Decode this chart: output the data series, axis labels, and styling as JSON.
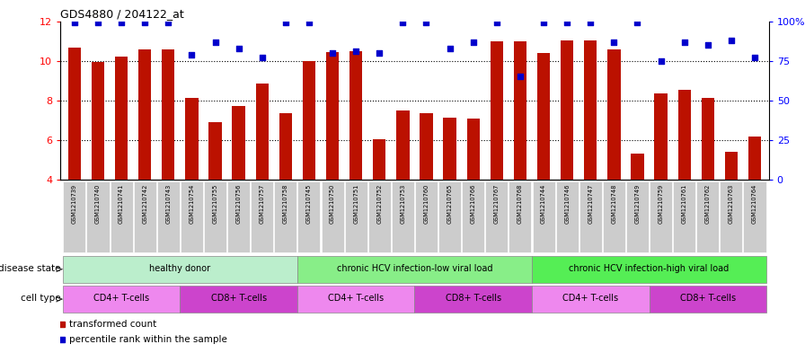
{
  "title": "GDS4880 / 204122_at",
  "samples": [
    "GSM1210739",
    "GSM1210740",
    "GSM1210741",
    "GSM1210742",
    "GSM1210743",
    "GSM1210754",
    "GSM1210755",
    "GSM1210756",
    "GSM1210757",
    "GSM1210758",
    "GSM1210745",
    "GSM1210750",
    "GSM1210751",
    "GSM1210752",
    "GSM1210753",
    "GSM1210760",
    "GSM1210765",
    "GSM1210766",
    "GSM1210767",
    "GSM1210768",
    "GSM1210744",
    "GSM1210746",
    "GSM1210747",
    "GSM1210748",
    "GSM1210749",
    "GSM1210759",
    "GSM1210761",
    "GSM1210762",
    "GSM1210763",
    "GSM1210764"
  ],
  "bar_values": [
    10.65,
    9.95,
    10.2,
    10.6,
    10.6,
    8.15,
    6.9,
    7.75,
    8.85,
    7.35,
    10.0,
    10.45,
    10.5,
    6.05,
    7.5,
    7.35,
    7.15,
    7.1,
    11.0,
    11.0,
    10.4,
    11.05,
    11.05,
    10.6,
    5.35,
    8.35,
    8.55,
    8.15,
    5.4,
    6.2
  ],
  "percentile_values": [
    99,
    99,
    99,
    99,
    99,
    79,
    87,
    83,
    77,
    99,
    99,
    80,
    81,
    80,
    99,
    99,
    83,
    87,
    99,
    65,
    99,
    99,
    99,
    87,
    99,
    75,
    87,
    85,
    88,
    77
  ],
  "bar_bottom": 4.0,
  "ylim_left": [
    4,
    12
  ],
  "ylim_right": [
    0,
    100
  ],
  "yticks_left": [
    4,
    6,
    8,
    10,
    12
  ],
  "yticks_right": [
    0,
    25,
    50,
    75,
    100
  ],
  "bar_color": "#BB1100",
  "dot_color": "#0000CC",
  "disease_states": [
    {
      "label": "healthy donor",
      "start": 0,
      "end": 9,
      "color": "#BBEECC"
    },
    {
      "label": "chronic HCV infection-low viral load",
      "start": 10,
      "end": 19,
      "color": "#88EE88"
    },
    {
      "label": "chronic HCV infection-high viral load",
      "start": 20,
      "end": 29,
      "color": "#55EE55"
    }
  ],
  "cell_types": [
    {
      "label": "CD4+ T-cells",
      "start": 0,
      "end": 4,
      "color": "#EE88EE"
    },
    {
      "label": "CD8+ T-cells",
      "start": 5,
      "end": 9,
      "color": "#CC44CC"
    },
    {
      "label": "CD4+ T-cells",
      "start": 10,
      "end": 14,
      "color": "#EE88EE"
    },
    {
      "label": "CD8+ T-cells",
      "start": 15,
      "end": 19,
      "color": "#CC44CC"
    },
    {
      "label": "CD4+ T-cells",
      "start": 20,
      "end": 24,
      "color": "#EE88EE"
    },
    {
      "label": "CD8+ T-cells",
      "start": 25,
      "end": 29,
      "color": "#CC44CC"
    }
  ],
  "disease_state_label": "disease state",
  "cell_type_label": "cell type",
  "legend_bar_label": "transformed count",
  "legend_dot_label": "percentile rank within the sample",
  "plot_bg": "#FFFFFF",
  "xtick_box_color": "#CCCCCC"
}
